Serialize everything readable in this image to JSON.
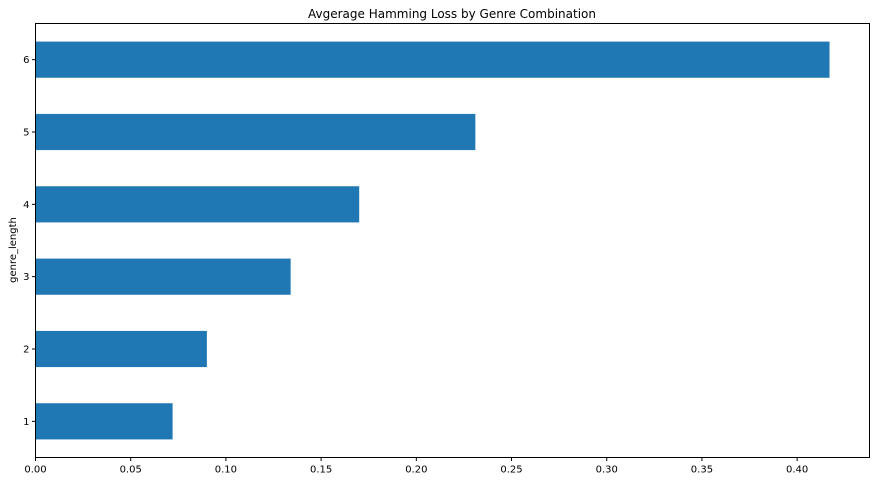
{
  "chart_data": {
    "type": "bar",
    "orientation": "horizontal",
    "title": "Avgerage Hamming Loss by Genre Combination",
    "xlabel": "",
    "ylabel": "genre_length",
    "categories": [
      "1",
      "2",
      "3",
      "4",
      "5",
      "6"
    ],
    "values": [
      0.072,
      0.09,
      0.134,
      0.17,
      0.231,
      0.417
    ],
    "xlim": [
      0,
      0.438
    ],
    "xticks": [
      "0.00",
      "0.05",
      "0.10",
      "0.15",
      "0.20",
      "0.25",
      "0.30",
      "0.35",
      "0.40"
    ],
    "grid": false,
    "legend": "none",
    "bar_color": "#1f77b4"
  }
}
